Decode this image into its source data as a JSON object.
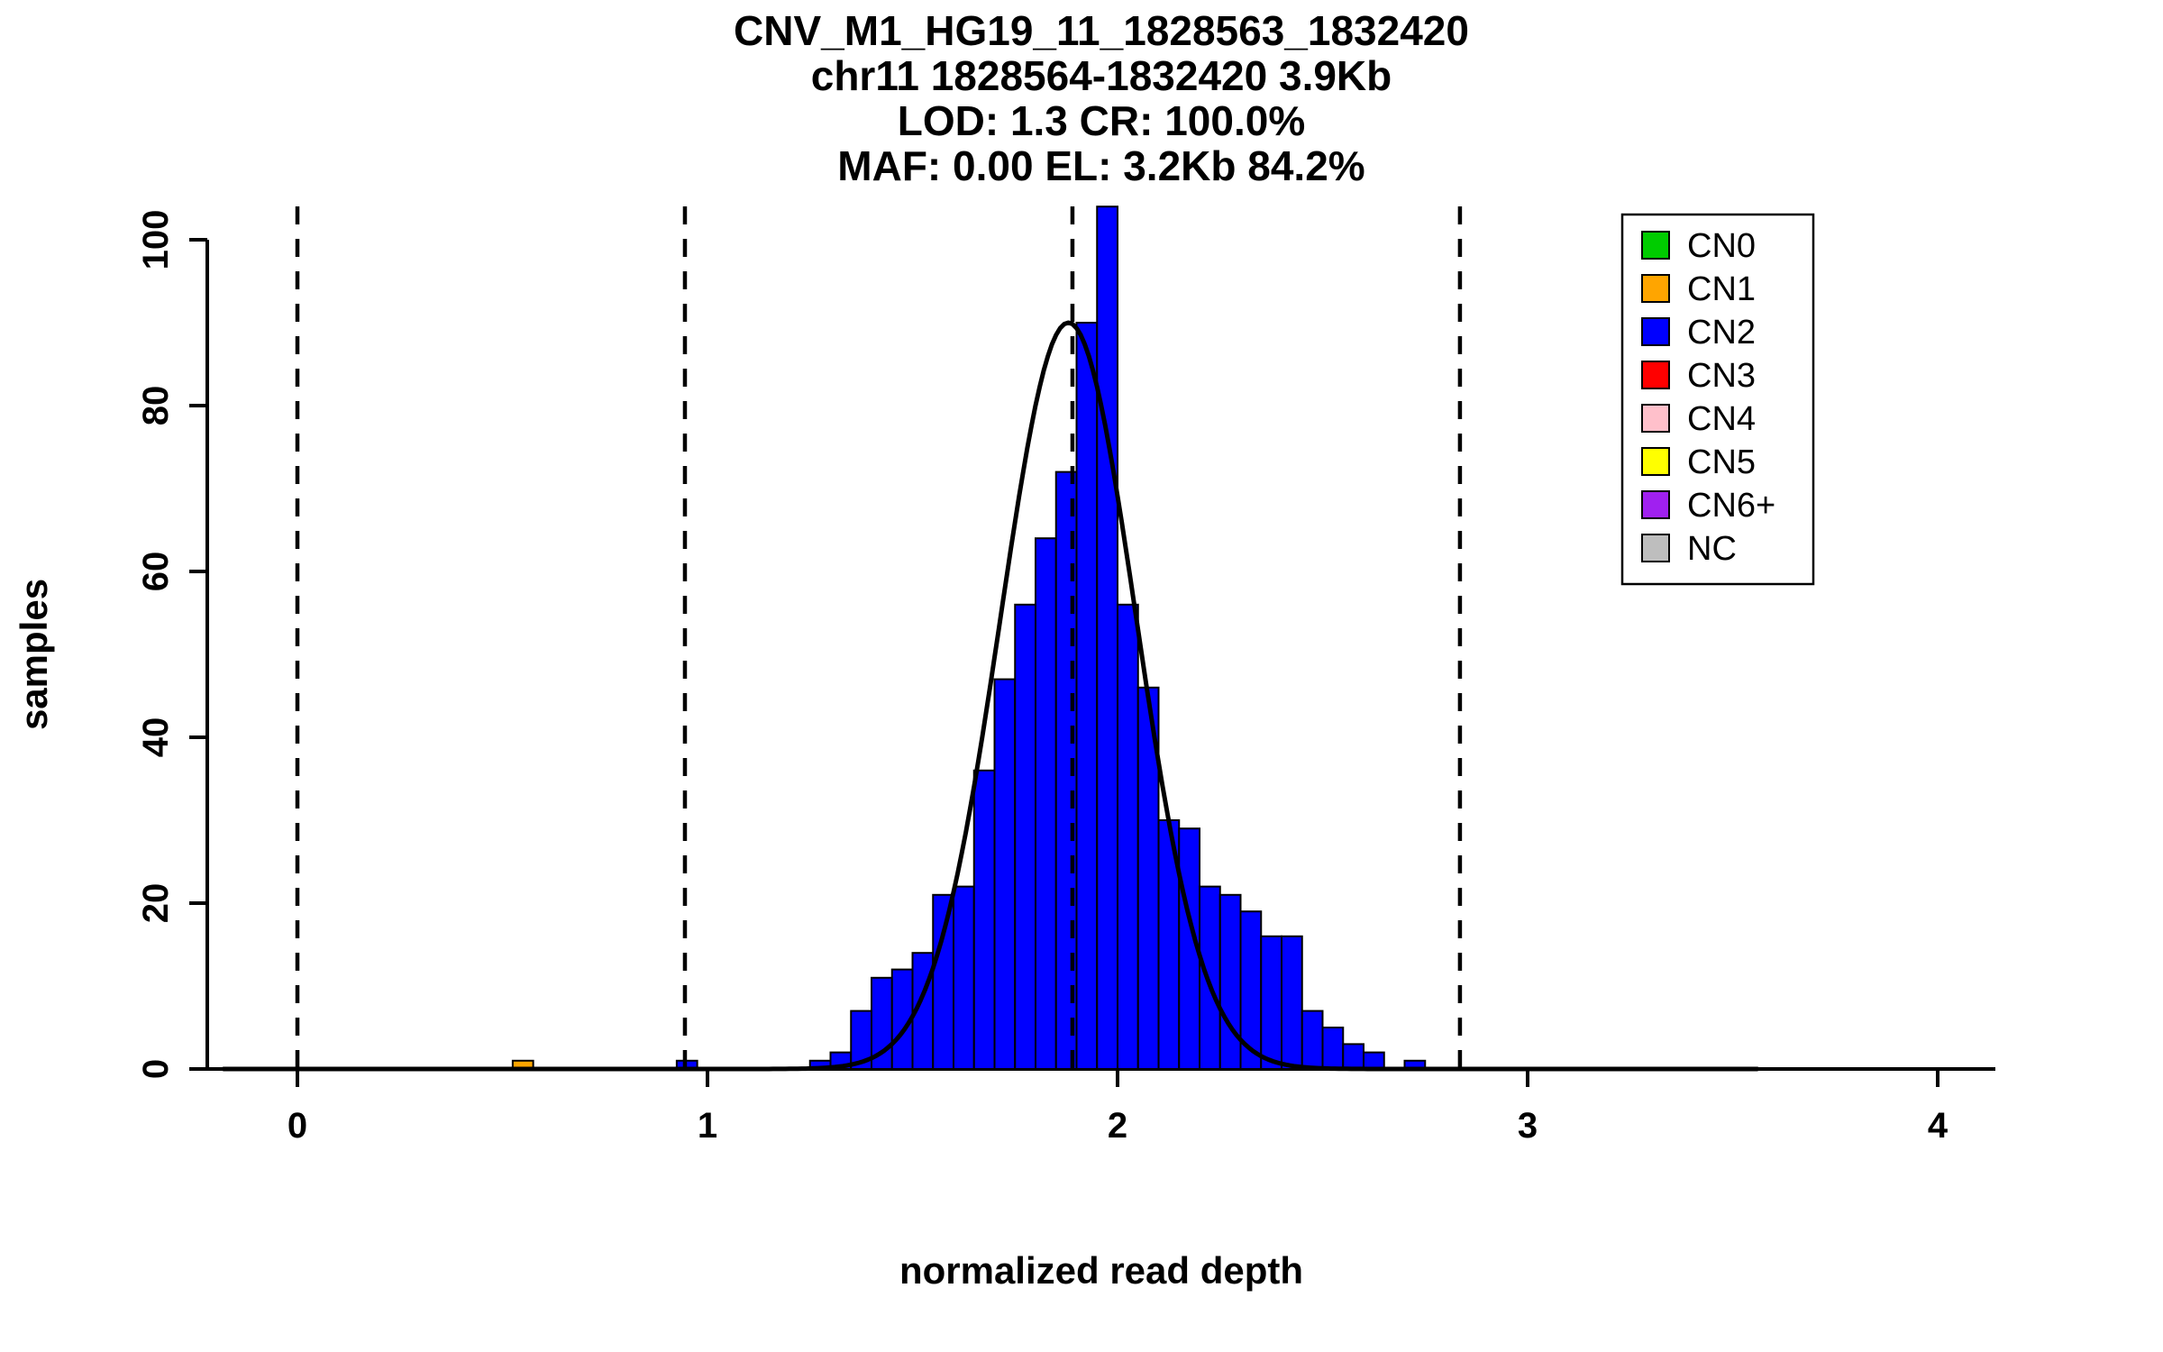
{
  "chart_data": {
    "type": "bar",
    "subtype": "histogram-with-density-curve",
    "title_lines": [
      "CNV_M1_HG19_11_1828563_1832420",
      "chr11 1828564-1832420 3.9Kb",
      "LOD: 1.3 CR: 100.0%",
      "MAF: 0.00 EL: 3.2Kb 84.2%"
    ],
    "xlabel": "normalized read depth",
    "ylabel": "samples",
    "x_ticks": [
      0,
      1,
      2,
      3,
      4
    ],
    "y_ticks": [
      0,
      20,
      40,
      60,
      80,
      100
    ],
    "xlim": [
      -0.21,
      4.14
    ],
    "ylim": [
      0,
      104
    ],
    "grid": false,
    "histogram": {
      "series_name": "CN2",
      "bin_start": 1.25,
      "bin_width": 0.05,
      "counts": [
        1,
        2,
        7,
        11,
        12,
        14,
        21,
        22,
        36,
        47,
        56,
        64,
        72,
        90,
        104,
        56,
        46,
        30,
        29,
        22,
        21,
        19,
        16,
        16,
        7,
        5,
        3,
        2,
        0,
        1
      ],
      "bar_color": "#0000FF",
      "bar_border": "#000000"
    },
    "extra_bars": [
      {
        "cn": "CN1",
        "x_start": 0.525,
        "width": 0.05,
        "count": 1,
        "color": "#FFA500"
      },
      {
        "cn": "CN2",
        "x_start": 0.925,
        "width": 0.05,
        "count": 1,
        "color": "#0000FF"
      }
    ],
    "cn_boundary_lines_x": [
      0,
      0.945,
      1.89,
      2.835
    ],
    "density_curve": {
      "mean": 1.88,
      "sd": 0.165,
      "peak": 90,
      "x_range": [
        -0.18,
        3.56
      ],
      "color": "#000000"
    },
    "legend": {
      "position": "top-right",
      "entries": [
        {
          "label": "CN0",
          "color": "#00CC00"
        },
        {
          "label": "CN1",
          "color": "#FFA500"
        },
        {
          "label": "CN2",
          "color": "#0000FF"
        },
        {
          "label": "CN3",
          "color": "#FF0000"
        },
        {
          "label": "CN4",
          "color": "#FFC0CB"
        },
        {
          "label": "CN5",
          "color": "#FFFF00"
        },
        {
          "label": "CN6+",
          "color": "#A020F0"
        },
        {
          "label": "NC",
          "color": "#BEBEBE"
        }
      ]
    }
  }
}
